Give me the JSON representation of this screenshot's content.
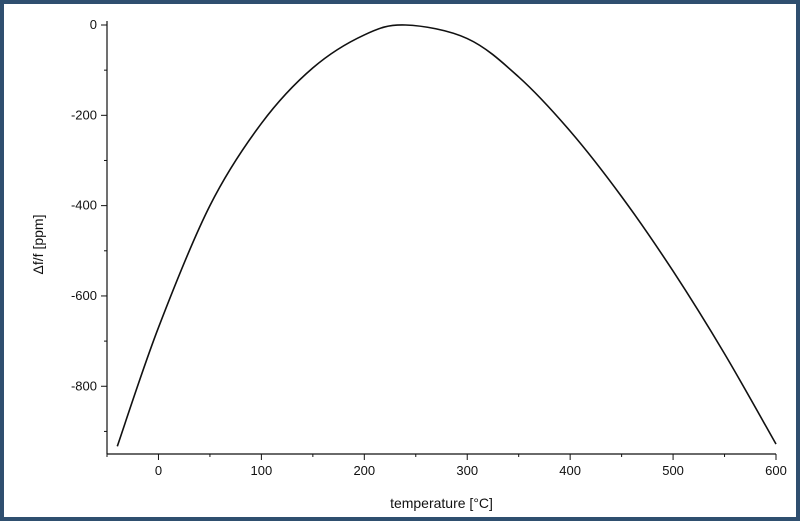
{
  "chart_data": {
    "type": "line",
    "title": "",
    "xlabel": "temperature [°C]",
    "ylabel": "Δf/f [ppm]",
    "xlim": [
      -50,
      600
    ],
    "ylim": [
      -950,
      0
    ],
    "grid": false,
    "legend": "none",
    "x_ticks": [
      0,
      100,
      200,
      300,
      400,
      500,
      600
    ],
    "x_tick_labels": [
      "0",
      "100",
      "200",
      "300",
      "400",
      "500",
      "600"
    ],
    "y_ticks": [
      0,
      -200,
      -400,
      -600,
      -800
    ],
    "y_tick_labels": [
      "0",
      "-200",
      "-400",
      "-600",
      "-800"
    ],
    "series": [
      {
        "color": "#111111",
        "x": [
          -40,
          0,
          50,
          100,
          150,
          200,
          240,
          300,
          350,
          400,
          450,
          500,
          550,
          600
        ],
        "y": [
          -933,
          -670,
          -400,
          -218,
          -95,
          -22,
          0,
          -30,
          -115,
          -235,
          -380,
          -545,
          -728,
          -928
        ]
      }
    ]
  }
}
